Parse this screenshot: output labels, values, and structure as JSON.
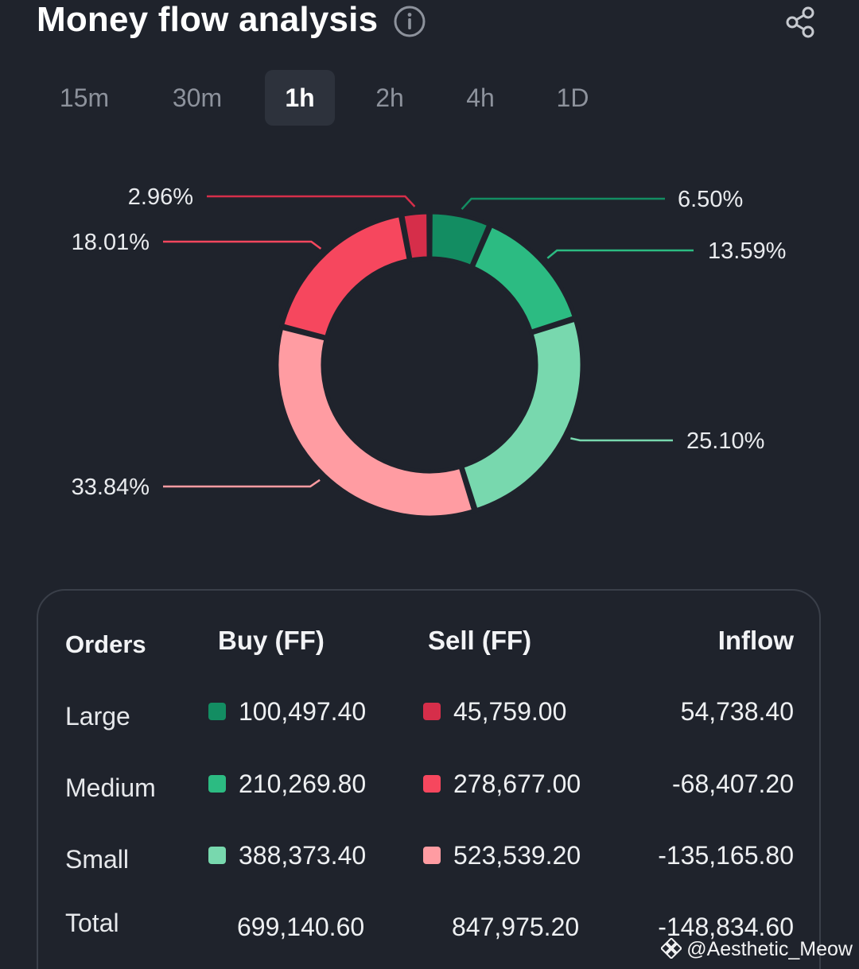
{
  "header": {
    "title": "Money flow analysis",
    "info_icon": "info-icon",
    "share_icon": "share-icon"
  },
  "tabs": [
    {
      "label": "15m",
      "active": false
    },
    {
      "label": "30m",
      "active": false
    },
    {
      "label": "1h",
      "active": true
    },
    {
      "label": "2h",
      "active": false
    },
    {
      "label": "4h",
      "active": false
    },
    {
      "label": "1D",
      "active": false
    }
  ],
  "chart_data": {
    "type": "pie",
    "donut": true,
    "slices": [
      {
        "label": "6.50%",
        "value": 6.5,
        "color": "#138d62"
      },
      {
        "label": "13.59%",
        "value": 13.59,
        "color": "#2cbb82"
      },
      {
        "label": "25.10%",
        "value": 25.1,
        "color": "#78d8ae"
      },
      {
        "label": "33.84%",
        "value": 33.84,
        "color": "#ff9ca2"
      },
      {
        "label": "18.01%",
        "value": 18.01,
        "color": "#f6475e"
      },
      {
        "label": "2.96%",
        "value": 2.96,
        "color": "#d62e4a"
      }
    ]
  },
  "table": {
    "headers": {
      "orders": "Orders",
      "buy": "Buy (FF)",
      "sell": "Sell (FF)",
      "inflow": "Inflow"
    },
    "rows": [
      {
        "label": "Large",
        "buy": "100,497.40",
        "sell": "45,759.00",
        "inflow": "54,738.40",
        "buy_color": "#138d62",
        "sell_color": "#d62e4a"
      },
      {
        "label": "Medium",
        "buy": "210,269.80",
        "sell": "278,677.00",
        "inflow": "-68,407.20",
        "buy_color": "#2cbb82",
        "sell_color": "#f6475e"
      },
      {
        "label": "Small",
        "buy": "388,373.40",
        "sell": "523,539.20",
        "inflow": "-135,165.80",
        "buy_color": "#78d8ae",
        "sell_color": "#ff9ca2"
      }
    ],
    "total": {
      "label": "Total",
      "buy": "699,140.60",
      "sell": "847,975.20",
      "inflow": "-148,834.60"
    }
  },
  "watermark": {
    "text": "@Aesthetic_Meow",
    "icon": "binance-logo-icon"
  }
}
